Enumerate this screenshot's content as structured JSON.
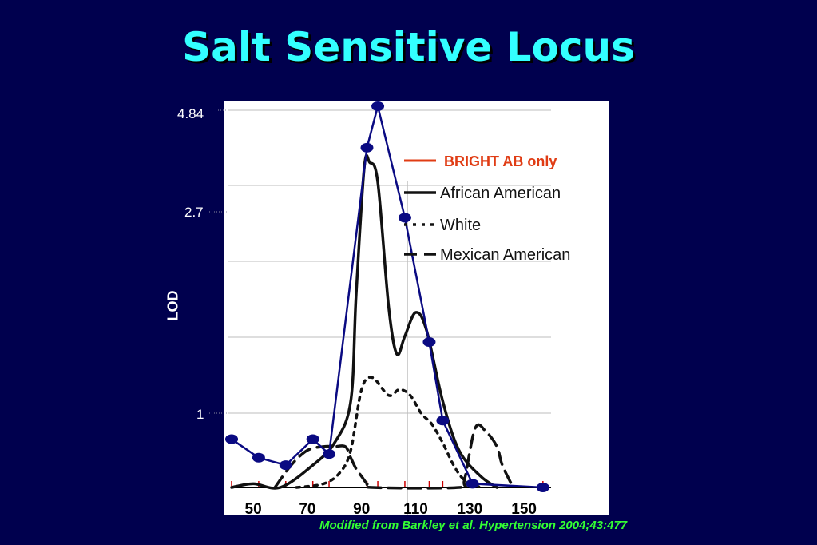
{
  "slide": {
    "title": "Salt Sensitive Locus",
    "citation": "Modified from Barkley et al. Hypertension 2004;43:477"
  },
  "chart_data": {
    "type": "line",
    "title": "Salt Sensitive Locus",
    "xlabel": "",
    "ylabel": "LOD",
    "xlim": [
      42,
      160
    ],
    "ylim": [
      0,
      4.84
    ],
    "x_tick_labels": [
      "50",
      "70",
      "90",
      "110",
      "130",
      "150"
    ],
    "x_ticks": [
      50,
      70,
      90,
      110,
      130,
      150
    ],
    "y_tick_labels": [
      "1",
      "2.7",
      "4.84"
    ],
    "y_ticks": [
      1,
      2.7,
      4.84
    ],
    "grid": true,
    "legend_position": "top-right",
    "colors": {
      "background": "#00004e",
      "title": "#33ffff",
      "bright": "#0a0a82",
      "bright_legend": "#e03c14",
      "citation": "#33ff33",
      "marker_ticks": "#cc0000"
    },
    "series": [
      {
        "name": "BRIGHT AB only",
        "style": "solid-markers",
        "x": [
          42,
          52,
          62,
          72,
          78,
          92,
          96,
          106,
          115,
          120,
          131,
          157
        ],
        "y": [
          0.65,
          0.4,
          0.3,
          0.65,
          0.45,
          4.0,
          4.84,
          2.65,
          1.6,
          0.9,
          0.05,
          0
        ]
      },
      {
        "name": "African American",
        "style": "solid",
        "x": [
          42,
          50,
          60,
          72,
          80,
          86,
          88,
          91,
          93,
          96,
          100,
          103,
          106,
          110,
          114,
          120,
          126,
          134,
          140
        ],
        "y": [
          0,
          0.05,
          0,
          0.3,
          0.6,
          1.1,
          2.0,
          3.6,
          3.7,
          3.3,
          1.9,
          1.5,
          1.65,
          1.85,
          1.7,
          1.1,
          0.5,
          0.15,
          0
        ]
      },
      {
        "name": "White",
        "style": "dotted",
        "x": [
          66,
          76,
          82,
          86,
          90,
          94,
          100,
          104,
          108,
          112,
          116,
          120,
          124,
          128,
          134
        ],
        "y": [
          0,
          0.05,
          0.2,
          0.5,
          1.2,
          1.3,
          1.15,
          1.2,
          1.15,
          1.0,
          0.85,
          0.6,
          0.3,
          0.1,
          0
        ]
      },
      {
        "name": "Mexican American",
        "style": "dashed",
        "x": [
          58,
          64,
          70,
          76,
          80,
          84,
          86,
          88,
          90,
          92,
          94,
          126,
          128,
          132,
          136,
          140,
          142,
          146
        ],
        "y": [
          0,
          0.3,
          0.5,
          0.55,
          0.55,
          0.55,
          0.4,
          0.25,
          0.15,
          0.05,
          0,
          0,
          0.1,
          0.8,
          0.75,
          0.55,
          0.3,
          0
        ]
      }
    ],
    "marker_ticks_x": [
      42,
      52,
      62,
      72,
      78,
      92,
      96,
      106,
      115,
      120,
      131,
      157
    ]
  }
}
